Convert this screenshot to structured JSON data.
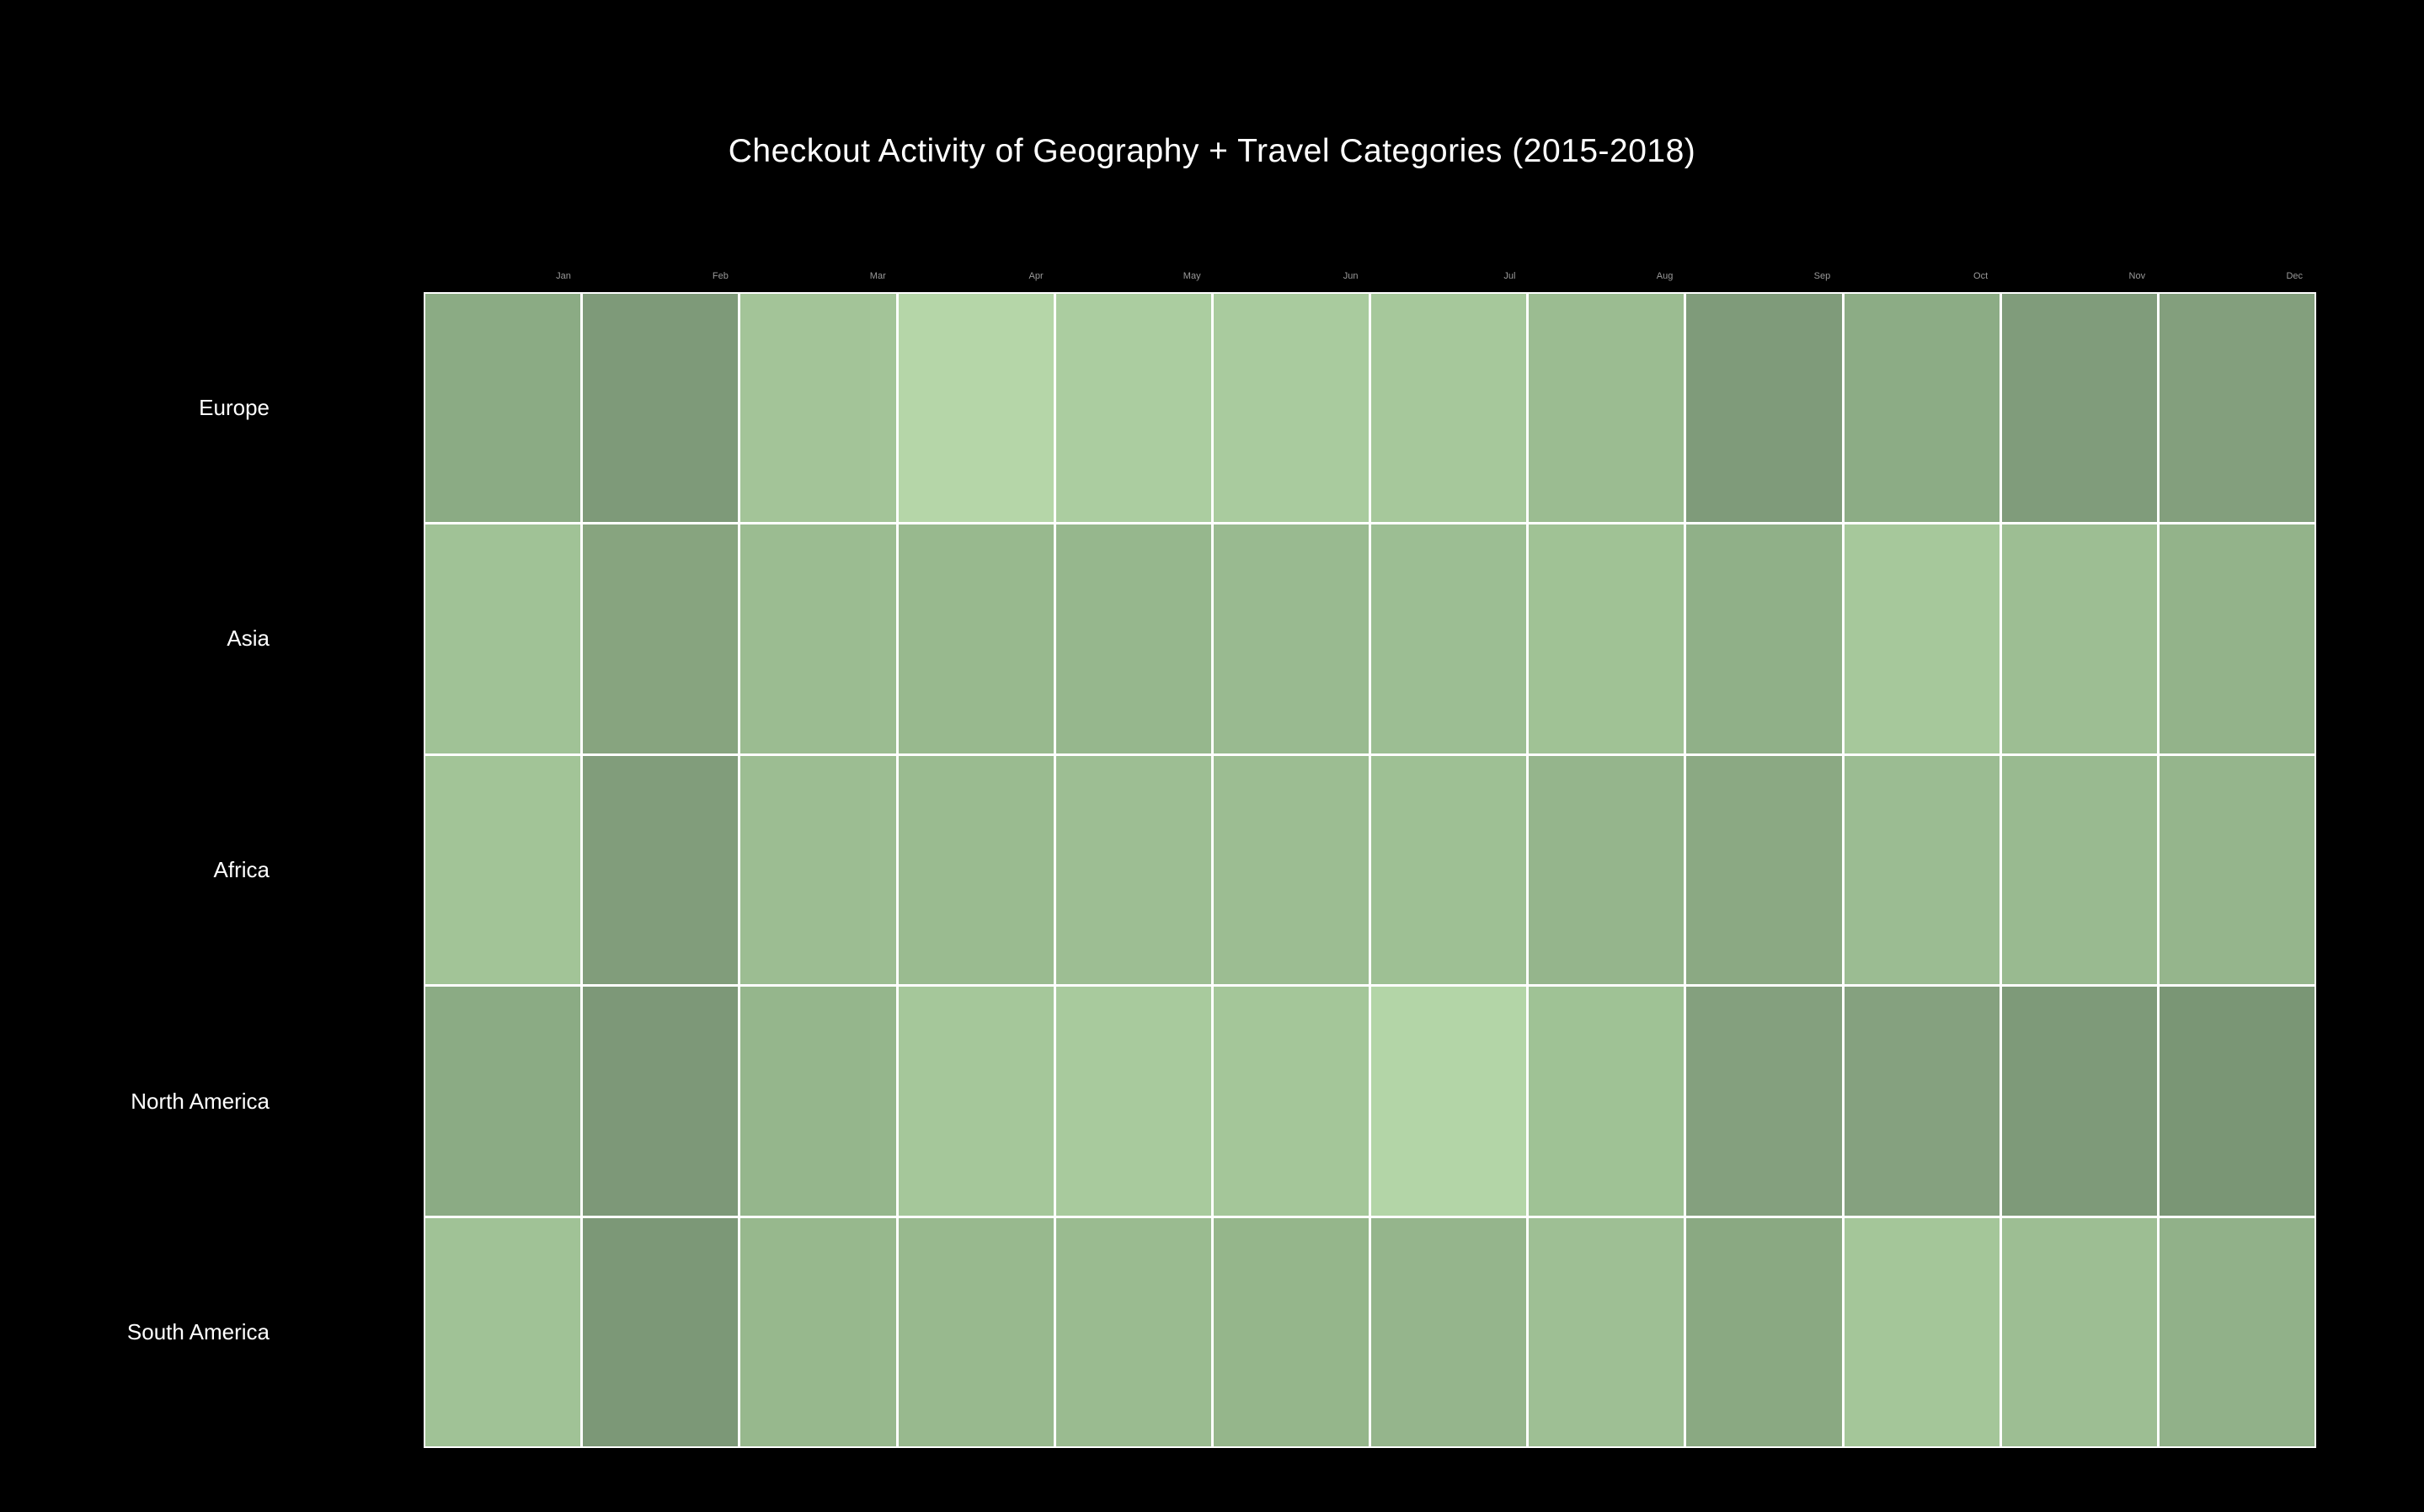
{
  "chart_data": {
    "type": "heatmap",
    "title": "Checkout Activity of Geography + Travel Categories (2015-2018)",
    "x_labels": [
      "Jan",
      "Feb",
      "Mar",
      "Apr",
      "May",
      "Jun",
      "Jul",
      "Aug",
      "Sep",
      "Oct",
      "Nov",
      "Dec"
    ],
    "y_labels": [
      "Europe",
      "Asia",
      "Africa",
      "North America",
      "South America"
    ],
    "cell_colors": [
      [
        "#8BAB84",
        "#7E9A79",
        "#A3C498",
        "#B5D6A8",
        "#ABCDA0",
        "#A9CB9E",
        "#A6C89B",
        "#9BBC91",
        "#7F9B7A",
        "#8CAC85",
        "#809C7B",
        "#839F7D"
      ],
      [
        "#A0C296",
        "#87A47F",
        "#9BBC91",
        "#98B98E",
        "#96B78D",
        "#99BA90",
        "#9CBE93",
        "#A0C295",
        "#90B088",
        "#A6C89B",
        "#9DBE93",
        "#93B38A"
      ],
      [
        "#A2C497",
        "#819D7B",
        "#9CBD92",
        "#9ABB90",
        "#9DBE93",
        "#9CBD92",
        "#9EC094",
        "#95B58C",
        "#8BA983",
        "#9BBC92",
        "#99BA90",
        "#95B58C"
      ],
      [
        "#8BAB84",
        "#7D9878",
        "#95B68C",
        "#A5C79A",
        "#A8CA9D",
        "#A4C699",
        "#B3D5A7",
        "#9FC295",
        "#84A07E",
        "#85A17F",
        "#7E9A79",
        "#7A9675"
      ],
      [
        "#A0C296",
        "#7C9877",
        "#97B88D",
        "#98B98E",
        "#9ABB90",
        "#95B68B",
        "#95B58C",
        "#9EBF94",
        "#8AA982",
        "#A4C699",
        "#9DBE93",
        "#91B189"
      ]
    ],
    "layout": {
      "background_color": "#000000",
      "cell_gap_color": "#ffffff",
      "title_color": "#ffffff",
      "x_tick_label_color": "#9a9a9a",
      "y_tick_label_color": "#ffffff",
      "legend": "none",
      "grid": "white gaps between cells",
      "value_scale": "not shown (color-encoded only, light-to-dark green)"
    }
  }
}
